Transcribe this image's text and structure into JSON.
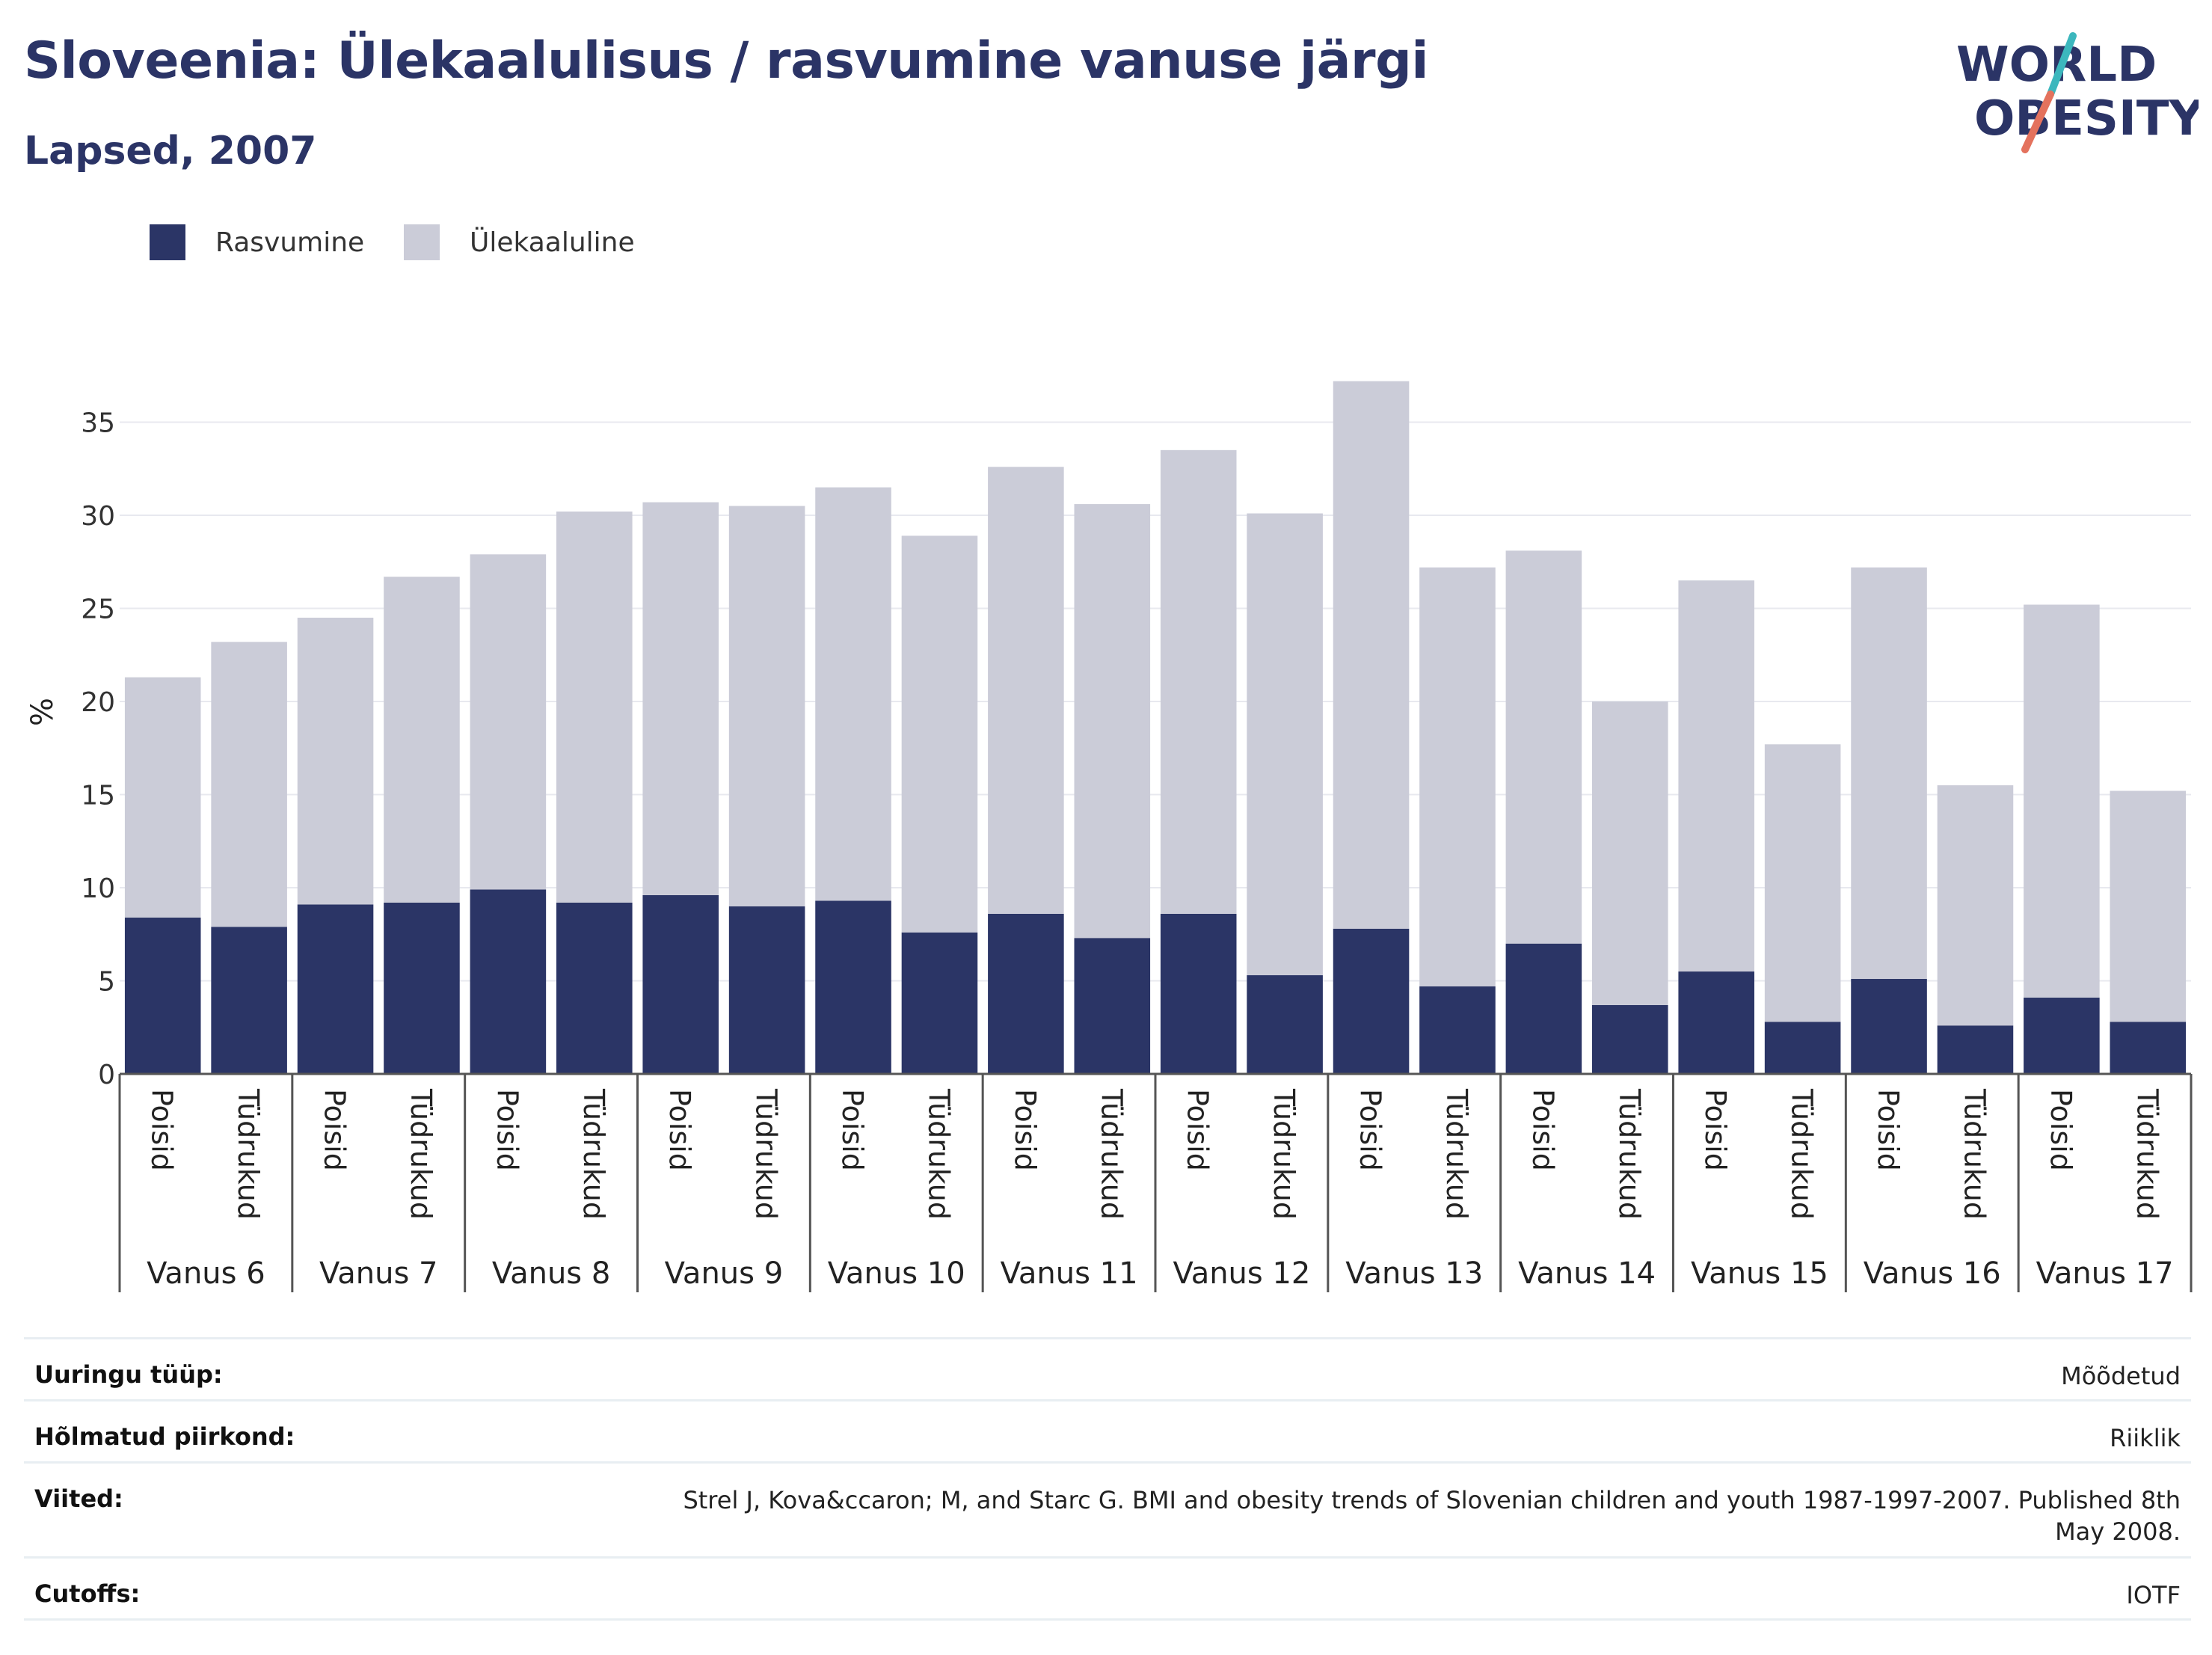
{
  "header": {
    "title": "Sloveenia: Ülekaalulisus / rasvumine vanuse järgi",
    "subtitle": "Lapsed, 2007"
  },
  "logo": {
    "line1": "WORLD",
    "line2": "OBESITY",
    "icon": "world-obesity-logo"
  },
  "colors": {
    "obesity": "#2b3566",
    "overweight": "#cbccd8",
    "title": "#2b3466"
  },
  "chart_data": {
    "type": "bar",
    "stacked": true,
    "ylabel": "%",
    "ylim": [
      0,
      37
    ],
    "yticks": [
      0,
      5,
      10,
      15,
      20,
      25,
      30,
      35
    ],
    "grid": true,
    "legend_position": "top-left",
    "groups": [
      "Vanus 6",
      "Vanus 7",
      "Vanus 8",
      "Vanus 9",
      "Vanus 10",
      "Vanus 11",
      "Vanus 12",
      "Vanus 13",
      "Vanus 14",
      "Vanus 15",
      "Vanus 16",
      "Vanus 17"
    ],
    "subcategories": [
      "Poisid",
      "Tüdrukud"
    ],
    "series": [
      {
        "name": "Rasvumine",
        "color": "#2b3566",
        "values": [
          8.4,
          7.9,
          9.1,
          9.2,
          9.9,
          9.2,
          9.6,
          9.0,
          9.3,
          7.6,
          8.6,
          7.3,
          8.6,
          5.3,
          7.8,
          4.7,
          7.0,
          3.7,
          5.5,
          2.8,
          5.1,
          2.6,
          4.1,
          2.8
        ]
      },
      {
        "name": "Ülekaaluline",
        "color": "#cbccd8",
        "values": [
          12.9,
          15.3,
          15.4,
          17.5,
          18.0,
          21.0,
          21.1,
          21.5,
          22.2,
          21.3,
          24.0,
          23.3,
          24.9,
          24.8,
          29.4,
          22.5,
          21.1,
          16.3,
          21.0,
          14.9,
          22.1,
          12.9,
          21.1,
          12.4
        ]
      }
    ]
  },
  "info": [
    {
      "label": "Uuringu tüüp:",
      "value": "Mõõdetud"
    },
    {
      "label": "Hõlmatud piirkond:",
      "value": "Riiklik"
    },
    {
      "label": "Viited:",
      "value": "Strel J, Kova&ccaron; M, and Starc G. BMI and obesity trends of Slovenian children and youth 1987-1997-2007. Published 8th May 2008."
    },
    {
      "label": "Cutoffs:",
      "value": "IOTF"
    }
  ]
}
